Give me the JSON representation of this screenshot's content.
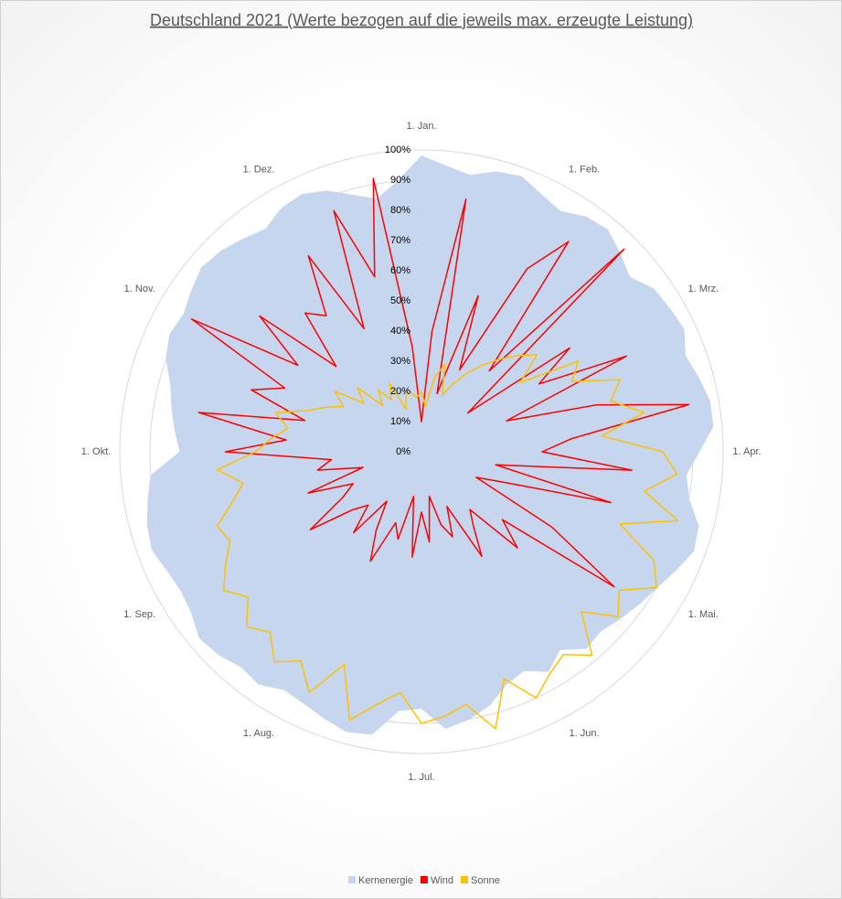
{
  "chart_data": {
    "type": "radar",
    "title": "Deutschland 2021 (Werte bezogen auf die jeweils max. erzeugte Leistung)",
    "categories": [
      "1. Jan.",
      null,
      null,
      null,
      null,
      null,
      "1. Feb.",
      null,
      null,
      null,
      null,
      null,
      "1. Mrz.",
      null,
      null,
      null,
      null,
      null,
      "1. Apr.",
      null,
      null,
      null,
      null,
      null,
      "1. Mai.",
      null,
      null,
      null,
      null,
      null,
      "1. Jun.",
      null,
      null,
      null,
      null,
      null,
      "1. Jul.",
      null,
      null,
      null,
      null,
      null,
      "1. Aug.",
      null,
      null,
      null,
      null,
      null,
      "1. Sep.",
      null,
      null,
      null,
      null,
      null,
      "1. Okt.",
      null,
      null,
      null,
      null,
      null,
      "1. Nov.",
      null,
      null,
      null,
      null,
      null,
      "1. Dez.",
      null,
      null,
      null,
      null,
      null
    ],
    "series": [
      {
        "name": "Kernenergie",
        "color": "#c5d6ee",
        "values": [
          98,
          95,
          93,
          96,
          97,
          94,
          92,
          95,
          96,
          93,
          90,
          94,
          95,
          96,
          93,
          95,
          97,
          97,
          92,
          88,
          90,
          95,
          96,
          93,
          90,
          88,
          86,
          84,
          85,
          80,
          84,
          80,
          82,
          87,
          90,
          92,
          85,
          86,
          95,
          96,
          94,
          92,
          91,
          94,
          93,
          95,
          96,
          93,
          92,
          93,
          95,
          94,
          92,
          90,
          80,
          82,
          84,
          86,
          90,
          92,
          91,
          93,
          95,
          94,
          92,
          90,
          93,
          94,
          92,
          88,
          85,
          90
        ]
      },
      {
        "name": "Wind",
        "color": "#ff0000",
        "values": [
          10,
          40,
          85,
          20,
          55,
          30,
          70,
          85,
          35,
          95,
          20,
          60,
          45,
          75,
          30,
          60,
          90,
          50,
          40,
          70,
          25,
          65,
          30,
          20,
          50,
          78,
          35,
          45,
          25,
          30,
          40,
          20,
          30,
          25,
          15,
          30,
          20,
          35,
          15,
          30,
          25,
          40,
          30,
          20,
          35,
          25,
          30,
          45,
          30,
          25,
          40,
          20,
          35,
          30,
          65,
          45,
          75,
          40,
          60,
          50,
          88,
          50,
          70,
          40,
          60,
          55,
          75,
          45,
          85,
          60,
          92,
          35
        ]
      },
      {
        "name": "Sonne",
        "color": "#ffc000",
        "values": [
          20,
          15,
          25,
          30,
          20,
          25,
          30,
          35,
          40,
          45,
          50,
          40,
          60,
          55,
          70,
          65,
          75,
          60,
          80,
          85,
          75,
          88,
          70,
          85,
          90,
          80,
          85,
          75,
          88,
          82,
          85,
          90,
          80,
          95,
          85,
          88,
          90,
          80,
          85,
          92,
          75,
          88,
          80,
          85,
          78,
          82,
          75,
          80,
          75,
          70,
          72,
          65,
          60,
          68,
          55,
          50,
          45,
          50,
          40,
          35,
          30,
          35,
          25,
          30,
          20,
          25,
          20,
          25,
          15,
          20,
          20,
          18
        ]
      }
    ],
    "rlim": [
      0,
      100
    ],
    "rticks": [
      {
        "value": 0,
        "label": "0%"
      },
      {
        "value": 10,
        "label": "10%"
      },
      {
        "value": 20,
        "label": "20%"
      },
      {
        "value": 30,
        "label": "30%"
      },
      {
        "value": 40,
        "label": "40%"
      },
      {
        "value": 50,
        "label": "50%"
      },
      {
        "value": 60,
        "label": "60%"
      },
      {
        "value": 70,
        "label": "70%"
      },
      {
        "value": 80,
        "label": "80%"
      },
      {
        "value": 90,
        "label": "90%"
      },
      {
        "value": 100,
        "label": "100%"
      }
    ],
    "grid": true,
    "legend": "bottom"
  }
}
